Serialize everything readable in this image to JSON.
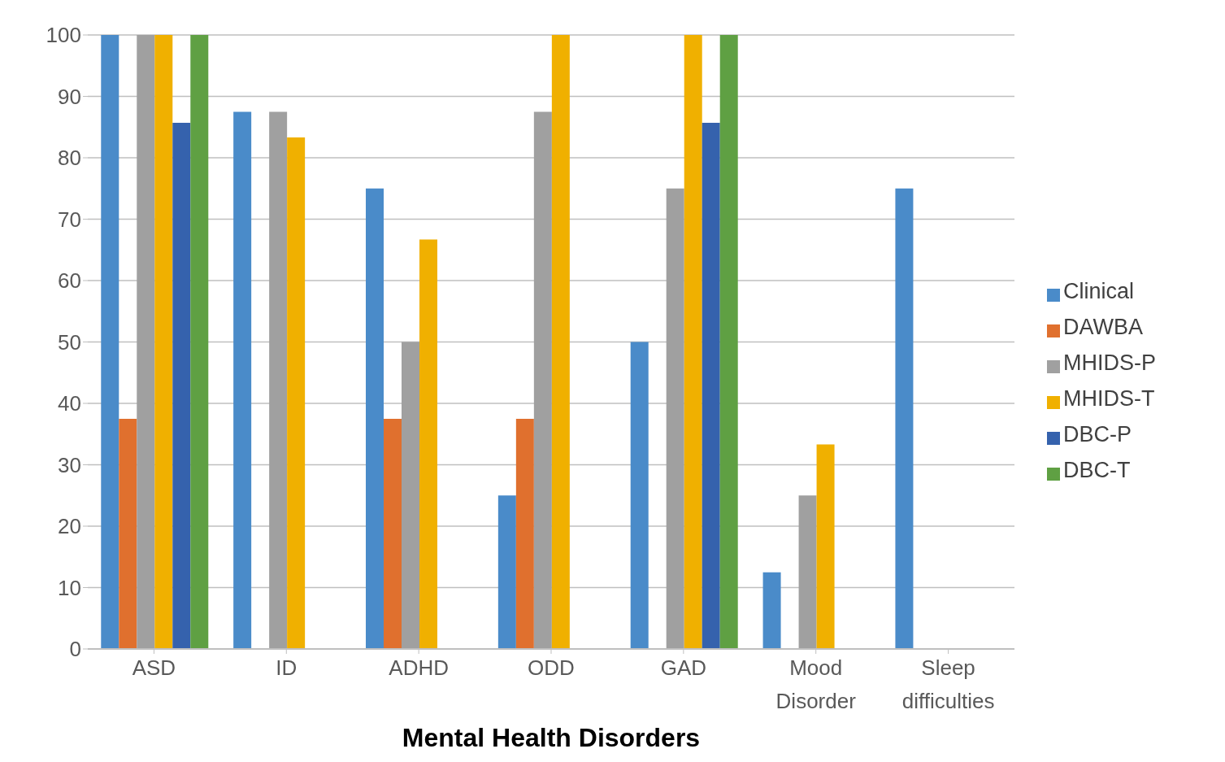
{
  "chart_data": {
    "type": "bar",
    "xlabel": "Mental Health Disorders",
    "categories": [
      "ASD",
      "ID",
      "ADHD",
      "ODD",
      "GAD",
      "Mood Disorder",
      "Sleep difficulties"
    ],
    "series": [
      {
        "name": "Clinical",
        "color": "#4a8bc9",
        "values": [
          100,
          87.5,
          75,
          25,
          50,
          12.5,
          75
        ]
      },
      {
        "name": "DAWBA",
        "color": "#e0702e",
        "values": [
          37.5,
          null,
          37.5,
          37.5,
          null,
          null,
          null
        ]
      },
      {
        "name": "MHIDS-P",
        "color": "#a0a0a0",
        "values": [
          100,
          87.5,
          50,
          87.5,
          75,
          25,
          null
        ]
      },
      {
        "name": "MHIDS-T",
        "color": "#f0b000",
        "values": [
          100,
          83.3,
          66.7,
          100,
          100,
          33.3,
          null
        ]
      },
      {
        "name": "DBC-P",
        "color": "#3562ad",
        "values": [
          85.7,
          null,
          null,
          null,
          85.7,
          null,
          null
        ]
      },
      {
        "name": "DBC-T",
        "color": "#5fa043",
        "values": [
          100,
          null,
          null,
          null,
          100,
          null,
          null
        ]
      }
    ],
    "ylim": [
      0,
      100
    ],
    "yticks": [
      0,
      10,
      20,
      30,
      40,
      50,
      60,
      70,
      80,
      90,
      100
    ],
    "grid": "y",
    "legend": "right"
  }
}
